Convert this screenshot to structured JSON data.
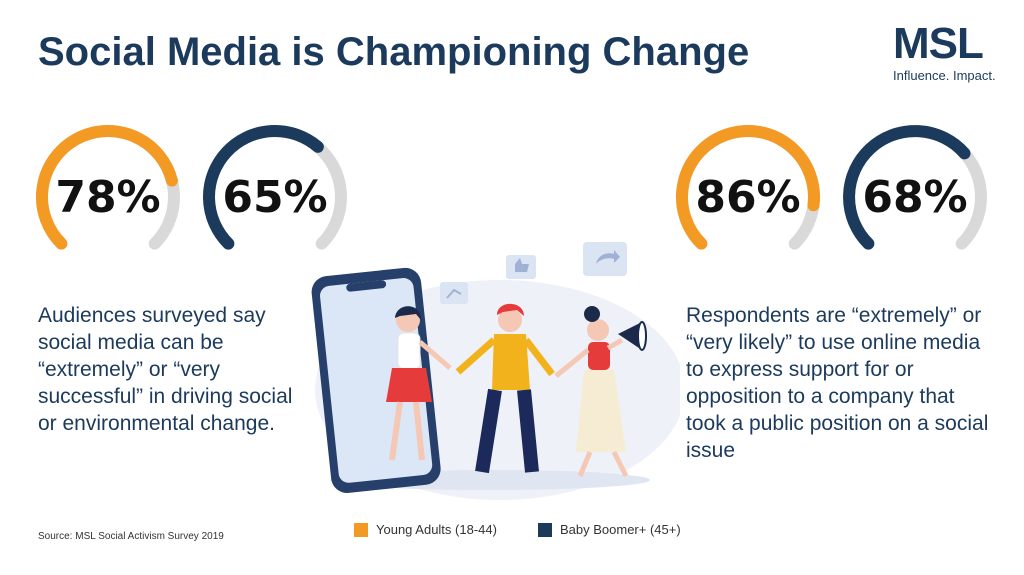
{
  "title": "Social Media is Championing Change",
  "logo": {
    "mark": "MSL",
    "tagline": "Influence. Impact."
  },
  "colors": {
    "young": "#f29a24",
    "boomer": "#1b3a5c",
    "track": "#d9d9d9"
  },
  "left_group": {
    "young_pct": "78%",
    "young_value": 78,
    "boomer_pct": "65%",
    "boomer_value": 65,
    "description": "Audiences surveyed say social media can be “extremely” or “very successful” in driving social or environmental change."
  },
  "right_group": {
    "young_pct": "86%",
    "young_value": 86,
    "boomer_pct": "68%",
    "boomer_value": 68,
    "description": "Respondents are “extremely” or “very likely” to use online media to express support for or opposition to a company that took a public position on a social issue"
  },
  "legend": {
    "young": "Young Adults (18-44)",
    "boomer": "Baby Boomer+ (45+)"
  },
  "source": "Source: MSL Social Activism Survey 2019"
}
